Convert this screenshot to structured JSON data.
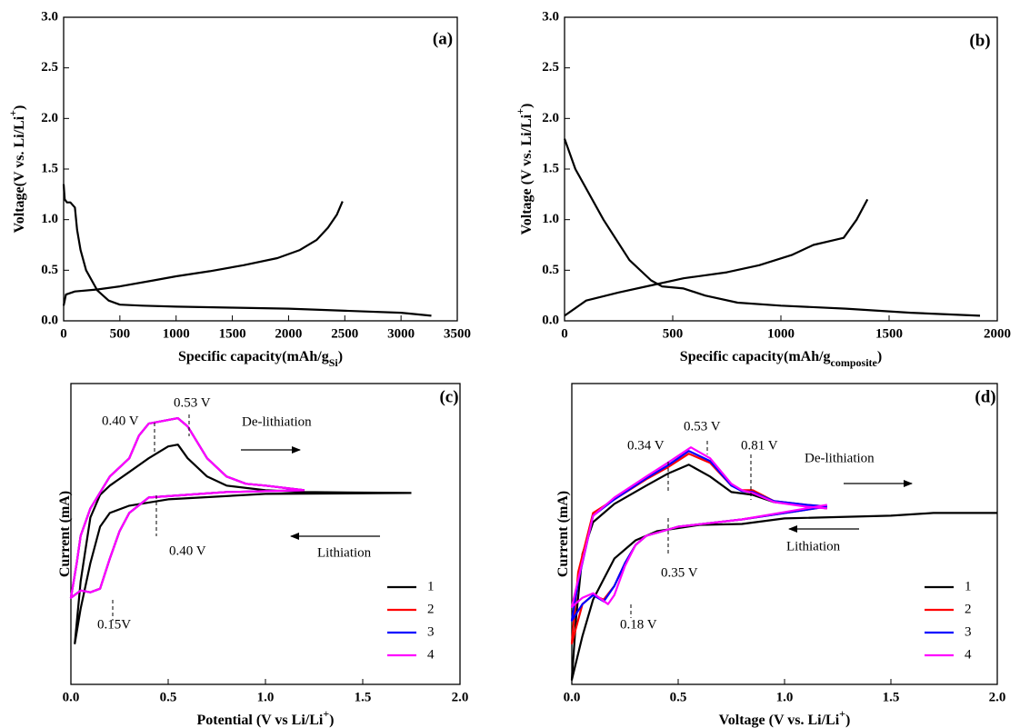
{
  "chart_data": [
    {
      "type": "line",
      "panel_label": "(a)",
      "xlabel": {
        "text": "Specific capacity(mAh/g",
        "sub": "Si",
        "end": ")"
      },
      "ylabel": {
        "text": "Voltage(V vs. Li/Li",
        "sup": "+",
        "end": ")"
      },
      "xlim": [
        0,
        3500
      ],
      "xticks": [
        0,
        500,
        1000,
        1500,
        2000,
        2500,
        3000,
        3500
      ],
      "ylim": [
        0,
        3.0
      ],
      "yticks": [
        {
          "value": 0,
          "label": "0.0"
        },
        0.5,
        {
          "value": 1,
          "label": "1.0"
        },
        1.5,
        {
          "value": 2,
          "label": "2.0"
        },
        2.5,
        {
          "value": 3,
          "label": "3.0"
        }
      ],
      "series": [
        {
          "color": "#000000",
          "x": [
            0,
            10,
            30,
            60,
            100,
            120,
            150,
            200,
            300,
            400,
            500,
            700,
            1000,
            1500,
            2000,
            2500,
            3000,
            3270
          ],
          "values": [
            1.35,
            1.2,
            1.17,
            1.17,
            1.12,
            0.9,
            0.7,
            0.5,
            0.3,
            0.2,
            0.16,
            0.15,
            0.14,
            0.13,
            0.12,
            0.1,
            0.08,
            0.05
          ]
        },
        {
          "color": "#000000",
          "x": [
            0,
            20,
            100,
            300,
            500,
            800,
            1000,
            1300,
            1600,
            1900,
            2100,
            2250,
            2350,
            2430,
            2480
          ],
          "values": [
            0.15,
            0.26,
            0.29,
            0.31,
            0.34,
            0.4,
            0.44,
            0.49,
            0.55,
            0.62,
            0.7,
            0.8,
            0.92,
            1.05,
            1.18
          ]
        }
      ]
    },
    {
      "type": "line",
      "panel_label": "(b)",
      "xlabel": {
        "text": "Specific capacity(mAh/g",
        "sub": "composite",
        "end": ")"
      },
      "ylabel": {
        "text": "Voltage (V vs. Li/Li",
        "sup": "+",
        "end": ")"
      },
      "xlim": [
        0,
        2000
      ],
      "xticks": [
        0,
        500,
        1000,
        1500,
        2000
      ],
      "ylim": [
        0,
        3.0
      ],
      "yticks": [
        {
          "value": 0,
          "label": "0.0"
        },
        0.5,
        {
          "value": 1,
          "label": "1.0"
        },
        1.5,
        {
          "value": 2,
          "label": "2.0"
        },
        2.5,
        {
          "value": 3,
          "label": "3.0"
        }
      ],
      "series": [
        {
          "color": "#000000",
          "x": [
            0,
            50,
            180,
            300,
            400,
            450,
            550,
            650,
            800,
            1000,
            1300,
            1600,
            1920
          ],
          "values": [
            1.8,
            1.5,
            1.0,
            0.6,
            0.4,
            0.34,
            0.32,
            0.25,
            0.18,
            0.15,
            0.12,
            0.08,
            0.05
          ]
        },
        {
          "color": "#000000",
          "x": [
            0,
            100,
            250,
            400,
            550,
            750,
            900,
            1050,
            1150,
            1250,
            1290,
            1350,
            1400
          ],
          "values": [
            0.05,
            0.2,
            0.28,
            0.35,
            0.42,
            0.48,
            0.55,
            0.65,
            0.75,
            0.8,
            0.82,
            1.0,
            1.2
          ]
        }
      ]
    },
    {
      "type": "line",
      "panel_label": "(c)",
      "xlabel": {
        "text": "Potential (V vs Li/Li",
        "sup": "+",
        "end": ")"
      },
      "ylabel": {
        "text": "Current (mA)"
      },
      "xlim": [
        0,
        2.0
      ],
      "xticks": [
        {
          "value": 0,
          "label": "0.0"
        },
        0.5,
        {
          "value": 1,
          "label": "1.0"
        },
        1.5,
        {
          "value": 2,
          "label": "2.0"
        }
      ],
      "ylim": [
        0,
        330
      ],
      "legend": "lower right",
      "annotations": [
        "0.40 V",
        "0.53 V",
        "De-lithiation",
        "Lithiation",
        "0.40 V",
        "0.15V"
      ],
      "series": [
        {
          "name": "1",
          "color": "#000000",
          "x": [
            1.75,
            1.0,
            0.5,
            0.3,
            0.2,
            0.15,
            0.1,
            0.05,
            0.02,
            0.05,
            0.1,
            0.15,
            0.2,
            0.3,
            0.4,
            0.5,
            0.55,
            0.6,
            0.7,
            0.8,
            1.0,
            1.2,
            1.75
          ],
          "values": [
            210,
            209,
            203,
            196,
            188,
            173,
            133,
            83,
            45,
            113,
            183,
            208,
            218,
            233,
            248,
            261,
            263,
            248,
            228,
            218,
            213,
            211,
            210
          ]
        },
        {
          "name": "2",
          "color": "#ff0000",
          "x": [
            1.2,
            0.8,
            0.6,
            0.4,
            0.3,
            0.25,
            0.2,
            0.15,
            0.1,
            0.05,
            0.0,
            0.03,
            0.05,
            0.1,
            0.2,
            0.3,
            0.35,
            0.4,
            0.5,
            0.55,
            0.6,
            0.7,
            0.8,
            0.9,
            1.0,
            1.2
          ],
          "values": [
            213,
            211,
            208,
            205,
            188,
            168,
            138,
            105,
            101,
            103,
            95,
            133,
            163,
            193,
            228,
            248,
            273,
            286,
            290,
            292,
            283,
            248,
            228,
            220,
            218,
            213
          ]
        },
        {
          "name": "3",
          "color": "#0000ff",
          "x": [
            1.2,
            0.8,
            0.6,
            0.4,
            0.3,
            0.25,
            0.2,
            0.15,
            0.1,
            0.05,
            0.0,
            0.03,
            0.05,
            0.1,
            0.2,
            0.3,
            0.35,
            0.4,
            0.5,
            0.55,
            0.6,
            0.7,
            0.8,
            0.9,
            1.0,
            1.2
          ],
          "values": [
            213,
            211,
            208,
            205,
            188,
            168,
            138,
            105,
            101,
            103,
            95,
            133,
            163,
            193,
            228,
            248,
            273,
            286,
            290,
            292,
            283,
            248,
            228,
            220,
            218,
            213
          ]
        },
        {
          "name": "4",
          "color": "#ff00ff",
          "x": [
            1.2,
            0.8,
            0.6,
            0.4,
            0.3,
            0.25,
            0.2,
            0.15,
            0.1,
            0.05,
            0.0,
            0.03,
            0.05,
            0.1,
            0.2,
            0.3,
            0.35,
            0.4,
            0.5,
            0.55,
            0.6,
            0.7,
            0.8,
            0.9,
            1.0,
            1.2
          ],
          "values": [
            213,
            211,
            208,
            205,
            188,
            168,
            138,
            105,
            101,
            103,
            95,
            133,
            163,
            193,
            228,
            248,
            273,
            286,
            290,
            292,
            283,
            248,
            228,
            220,
            218,
            213
          ]
        }
      ]
    },
    {
      "type": "line",
      "panel_label": "(d)",
      "xlabel": {
        "text": "Voltage (V vs. Li/Li",
        "sup": "+",
        "end": ")"
      },
      "ylabel": {
        "text": "Current (mA)"
      },
      "xlim": [
        0,
        2.0
      ],
      "xticks": [
        {
          "value": 0,
          "label": "0.0"
        },
        0.5,
        {
          "value": 1,
          "label": "1.0"
        },
        1.5,
        {
          "value": 2,
          "label": "2.0"
        }
      ],
      "ylim": [
        0,
        330
      ],
      "legend": "lower right",
      "annotations": [
        "0.34 V",
        "0.53 V",
        "0.81 V",
        "De-lithiation",
        "Lithiation",
        "0.35 V",
        "0.18 V"
      ],
      "series": [
        {
          "name": "1",
          "color": "#000000",
          "x": [
            2.0,
            1.7,
            1.5,
            1.0,
            0.8,
            0.6,
            0.4,
            0.3,
            0.2,
            0.1,
            0.05,
            0.0,
            0.02,
            0.05,
            0.1,
            0.2,
            0.35,
            0.45,
            0.55,
            0.65,
            0.75,
            0.85,
            0.95,
            1.1,
            1.2
          ],
          "values": [
            188,
            188,
            185,
            182,
            176,
            175,
            168,
            158,
            138,
            93,
            53,
            5,
            73,
            143,
            178,
            198,
            218,
            231,
            241,
            228,
            211,
            208,
            200,
            196,
            193
          ]
        },
        {
          "name": "2",
          "color": "#ff0000",
          "x": [
            1.2,
            0.8,
            0.5,
            0.35,
            0.3,
            0.25,
            0.2,
            0.15,
            0.1,
            0.05,
            0.0,
            0.03,
            0.1,
            0.2,
            0.35,
            0.45,
            0.55,
            0.65,
            0.75,
            0.8,
            0.85,
            0.95,
            1.1,
            1.2
          ],
          "values": [
            195,
            181,
            173,
            163,
            153,
            133,
            108,
            93,
            98,
            88,
            45,
            123,
            188,
            203,
            225,
            238,
            253,
            243,
            218,
            213,
            213,
            201,
            197,
            195
          ]
        },
        {
          "name": "3",
          "color": "#0000ff",
          "x": [
            1.2,
            0.8,
            0.5,
            0.35,
            0.3,
            0.25,
            0.2,
            0.15,
            0.1,
            0.05,
            0.0,
            0.03,
            0.1,
            0.2,
            0.35,
            0.45,
            0.55,
            0.65,
            0.75,
            0.8,
            0.85,
            0.95,
            1.1,
            1.2
          ],
          "values": [
            195,
            181,
            173,
            163,
            153,
            133,
            108,
            91,
            98,
            88,
            70,
            113,
            185,
            203,
            226,
            240,
            256,
            245,
            218,
            212,
            211,
            201,
            197,
            195
          ]
        },
        {
          "name": "4",
          "color": "#ff00ff",
          "x": [
            1.2,
            0.8,
            0.5,
            0.35,
            0.3,
            0.25,
            0.2,
            0.17,
            0.1,
            0.05,
            0.0,
            0.03,
            0.1,
            0.2,
            0.35,
            0.45,
            0.56,
            0.65,
            0.75,
            0.8,
            0.85,
            0.95,
            1.1,
            1.2
          ],
          "values": [
            197,
            181,
            173,
            163,
            153,
            130,
            98,
            88,
            100,
            95,
            85,
            115,
            185,
            205,
            228,
            243,
            260,
            248,
            220,
            213,
            210,
            200,
            195,
            193
          ]
        }
      ]
    }
  ]
}
